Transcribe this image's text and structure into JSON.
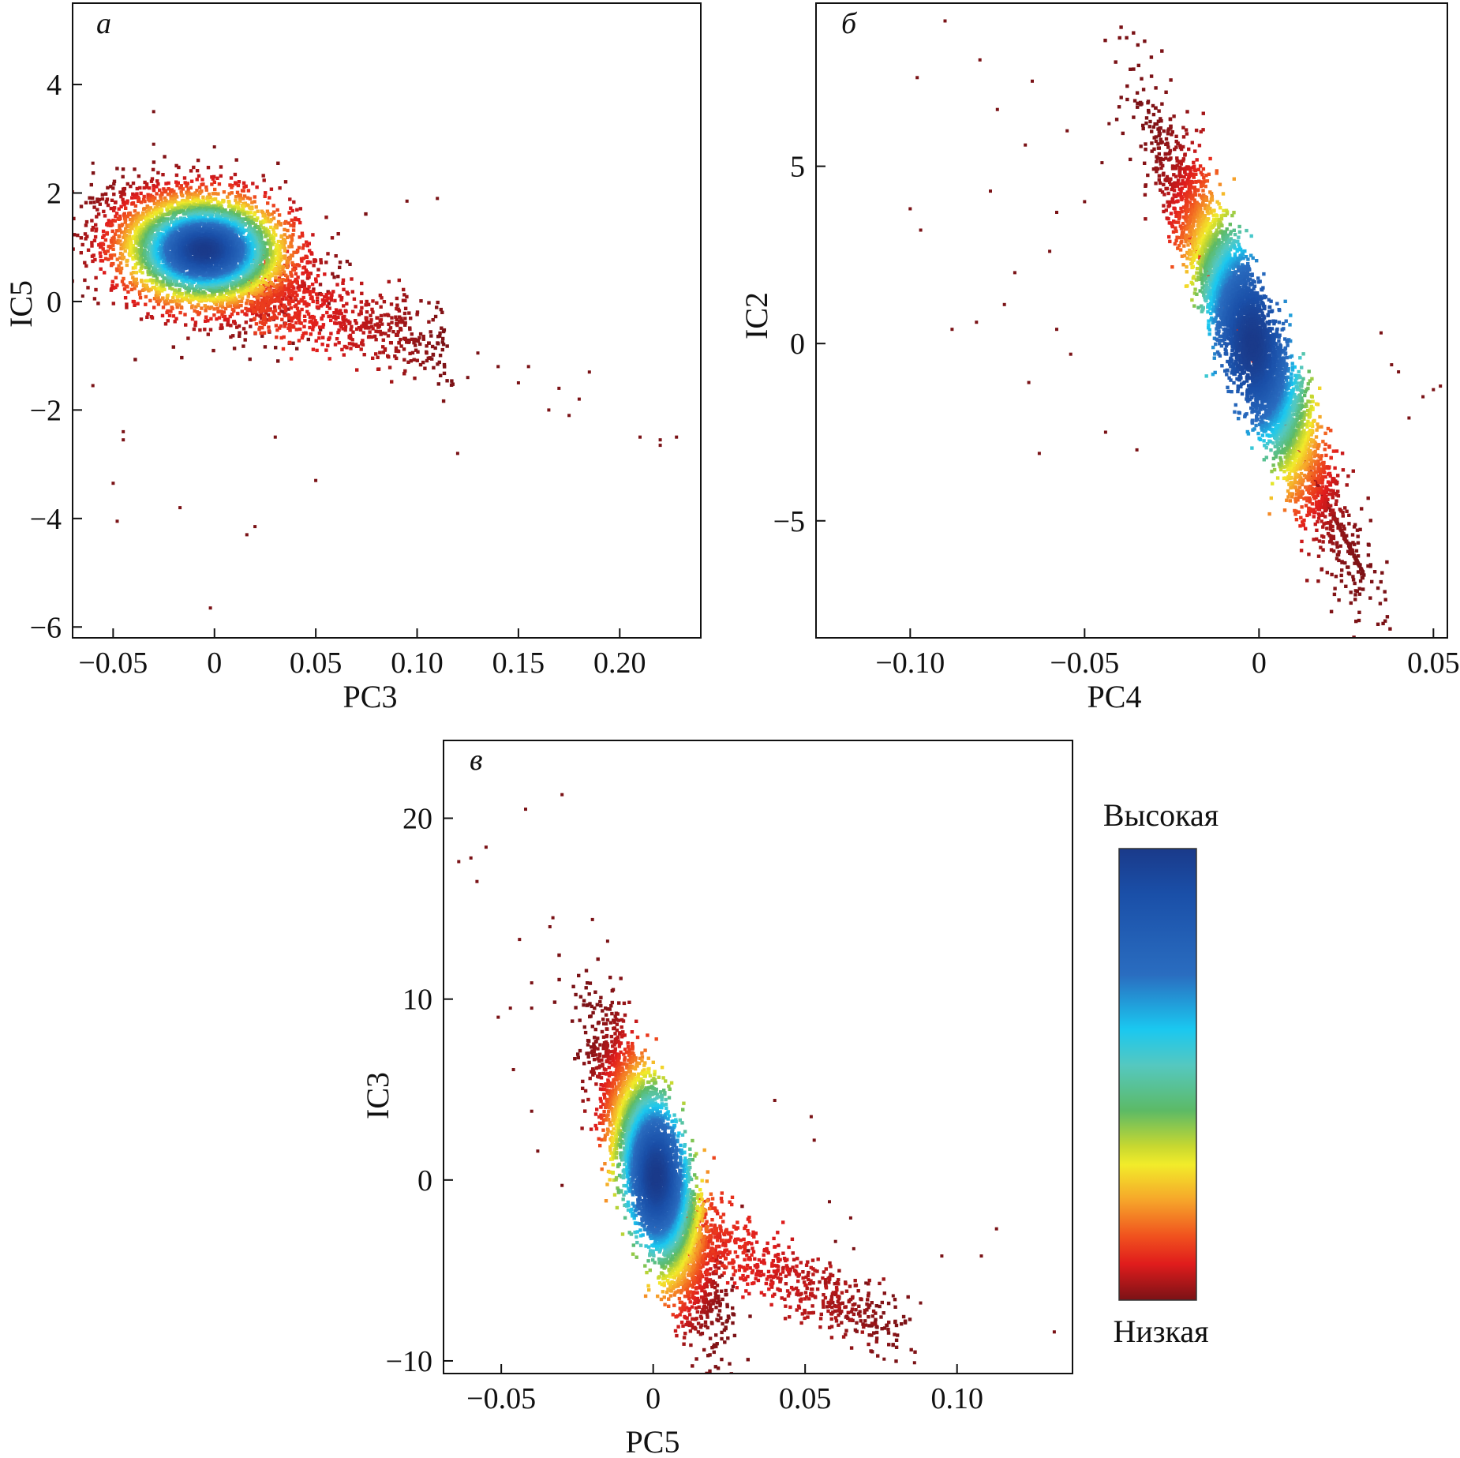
{
  "colorbar": {
    "high_label": "Высокая",
    "low_label": "Низкая",
    "stops": [
      {
        "offset": 0.0,
        "color": "#1a3a8a"
      },
      {
        "offset": 0.1,
        "color": "#1a4fa8"
      },
      {
        "offset": 0.28,
        "color": "#2a6dc0"
      },
      {
        "offset": 0.4,
        "color": "#1ac8f0"
      },
      {
        "offset": 0.48,
        "color": "#55c8c0"
      },
      {
        "offset": 0.58,
        "color": "#5cba66"
      },
      {
        "offset": 0.66,
        "color": "#c8d830"
      },
      {
        "offset": 0.7,
        "color": "#f2ec2a"
      },
      {
        "offset": 0.78,
        "color": "#f6a42a"
      },
      {
        "offset": 0.86,
        "color": "#f0501e"
      },
      {
        "offset": 0.92,
        "color": "#e01c1c"
      },
      {
        "offset": 1.0,
        "color": "#7a1216"
      }
    ]
  },
  "chart_data": [
    {
      "type": "heatmap",
      "panel": "а",
      "xlabel": "PC3",
      "ylabel": "IC5",
      "xlim": [
        -0.07,
        0.24
      ],
      "ylim": [
        -6.2,
        5.5
      ],
      "xticks": [
        -0.05,
        0,
        0.05,
        0.1,
        0.15,
        0.2
      ],
      "xticklabels": [
        "−0.05",
        "0",
        "0.05",
        "0.10",
        "0.15",
        "0.20"
      ],
      "yticks": [
        -6,
        -4,
        -2,
        0,
        2,
        4
      ],
      "yticklabels": [
        "−6",
        "−4",
        "−2",
        "0",
        "2",
        "4"
      ],
      "density_peak": {
        "x": -0.005,
        "y": 0.95
      },
      "core": {
        "cx": -0.005,
        "cy": 0.95,
        "sx": 0.022,
        "sy": 0.55,
        "rho": -0.25
      },
      "tail": {
        "from": [
          0.02,
          0.2
        ],
        "to": [
          0.115,
          -0.9
        ],
        "width": 0.35
      },
      "outliers": [
        [
          -0.03,
          3.5
        ],
        [
          -0.03,
          2.9
        ],
        [
          0,
          2.85
        ],
        [
          -0.06,
          2.55
        ],
        [
          -0.065,
          0.1
        ],
        [
          -0.06,
          -1.55
        ],
        [
          -0.045,
          -2.4
        ],
        [
          -0.045,
          -2.55
        ],
        [
          -0.05,
          -3.35
        ],
        [
          -0.048,
          -4.05
        ],
        [
          -0.017,
          -3.8
        ],
        [
          0.02,
          -4.15
        ],
        [
          0.016,
          -4.3
        ],
        [
          -0.002,
          -5.65
        ],
        [
          0.03,
          -2.5
        ],
        [
          0.05,
          -3.3
        ],
        [
          0.12,
          -2.8
        ],
        [
          0.11,
          1.9
        ],
        [
          0.095,
          1.85
        ],
        [
          0.15,
          -1.5
        ],
        [
          0.165,
          -2.0
        ],
        [
          0.175,
          -2.1
        ],
        [
          0.18,
          -1.8
        ],
        [
          0.185,
          -1.3
        ],
        [
          0.21,
          -2.5
        ],
        [
          0.22,
          -2.55
        ],
        [
          0.228,
          -2.5
        ],
        [
          0.22,
          -2.65
        ],
        [
          0.14,
          -1.2
        ],
        [
          0.13,
          -0.95
        ],
        [
          0.155,
          -1.2
        ],
        [
          0.17,
          -1.6
        ],
        [
          0.125,
          -1.4
        ]
      ]
    },
    {
      "type": "heatmap",
      "panel": "б",
      "xlabel": "PC4",
      "ylabel": "IC2",
      "xlim": [
        -0.127,
        0.054
      ],
      "ylim": [
        -8.3,
        9.6
      ],
      "xticks": [
        -0.1,
        -0.05,
        0,
        0.05
      ],
      "xticklabels": [
        "−0.10",
        "−0.05",
        "0",
        "0.05"
      ],
      "yticks": [
        -5,
        0,
        5
      ],
      "yticklabels": [
        "−5",
        "0",
        "5"
      ],
      "density_peak": {
        "x": -0.001,
        "y": 0.0
      },
      "core": {
        "cx": -0.002,
        "cy": 0.0,
        "sx": 0.012,
        "sy": 2.6,
        "rho": -0.93
      },
      "tail": {
        "from": [
          -0.02,
          3.0
        ],
        "to": [
          0.03,
          -6.5
        ],
        "width": 0.006
      },
      "outliers": [
        [
          -0.09,
          9.1
        ],
        [
          -0.098,
          7.5
        ],
        [
          -0.08,
          8.0
        ],
        [
          -0.065,
          7.4
        ],
        [
          -0.075,
          6.6
        ],
        [
          -0.055,
          6.0
        ],
        [
          -0.043,
          6.2
        ],
        [
          -0.1,
          3.8
        ],
        [
          -0.097,
          3.2
        ],
        [
          -0.088,
          0.4
        ],
        [
          -0.081,
          0.6
        ],
        [
          -0.066,
          -1.1
        ],
        [
          -0.063,
          -3.1
        ],
        [
          -0.067,
          5.6
        ],
        [
          -0.077,
          4.3
        ],
        [
          -0.07,
          2.0
        ],
        [
          -0.045,
          5.1
        ],
        [
          -0.05,
          4.0
        ],
        [
          -0.058,
          3.7
        ],
        [
          0.04,
          -0.8
        ],
        [
          0.047,
          -1.5
        ],
        [
          0.05,
          -1.3
        ],
        [
          0.052,
          -1.2
        ],
        [
          0.035,
          0.3
        ],
        [
          0.038,
          -0.6
        ],
        [
          0.043,
          -2.1
        ],
        [
          -0.035,
          -3.0
        ],
        [
          -0.044,
          -2.5
        ],
        [
          -0.06,
          2.6
        ],
        [
          -0.073,
          1.1
        ],
        [
          -0.058,
          0.4
        ],
        [
          -0.054,
          -0.3
        ]
      ]
    },
    {
      "type": "heatmap",
      "panel": "в",
      "xlabel": "PC5",
      "ylabel": "IC3",
      "xlim": [
        -0.069,
        0.138
      ],
      "ylim": [
        -10.7,
        24.3
      ],
      "xticks": [
        -0.05,
        0,
        0.05,
        0.1
      ],
      "xticklabels": [
        "−0.05",
        "0",
        "0.05",
        "0.10"
      ],
      "yticks": [
        -10,
        0,
        10,
        20
      ],
      "yticklabels": [
        "−10",
        "0",
        "10",
        "20"
      ],
      "density_peak": {
        "x": 0.0,
        "y": -0.2
      },
      "core": {
        "cx": 0.001,
        "cy": 0.2,
        "sx": 0.009,
        "sy": 3.6,
        "rho": -0.78
      },
      "tail": {
        "from": [
          0.01,
          -2.5
        ],
        "to": [
          0.08,
          -8.5
        ],
        "width": 0.9
      },
      "outliers": [
        [
          -0.03,
          21.3
        ],
        [
          -0.042,
          20.5
        ],
        [
          -0.06,
          17.8
        ],
        [
          -0.064,
          17.6
        ],
        [
          -0.055,
          18.4
        ],
        [
          -0.058,
          16.5
        ],
        [
          -0.033,
          14.5
        ],
        [
          -0.034,
          14.0
        ],
        [
          -0.02,
          14.4
        ],
        [
          -0.015,
          13.2
        ],
        [
          -0.044,
          13.3
        ],
        [
          -0.04,
          10.9
        ],
        [
          -0.047,
          9.5
        ],
        [
          -0.04,
          9.5
        ],
        [
          -0.051,
          9.0
        ],
        [
          -0.046,
          6.1
        ],
        [
          -0.04,
          3.8
        ],
        [
          -0.038,
          1.6
        ],
        [
          -0.03,
          -0.3
        ],
        [
          0.095,
          -4.2
        ],
        [
          0.108,
          -4.2
        ],
        [
          0.113,
          -2.7
        ],
        [
          0.132,
          -8.4
        ],
        [
          0.086,
          -10.1
        ],
        [
          0.076,
          -9.9
        ],
        [
          0.083,
          -7.9
        ],
        [
          0.088,
          -6.8
        ],
        [
          0.079,
          -6.4
        ],
        [
          0.065,
          -2.1
        ],
        [
          0.06,
          -3.4
        ],
        [
          0.052,
          3.5
        ],
        [
          0.053,
          2.2
        ],
        [
          0.04,
          4.4
        ],
        [
          0.07,
          -5.7
        ],
        [
          0.058,
          -1.2
        ],
        [
          0.066,
          -3.8
        ]
      ]
    }
  ]
}
